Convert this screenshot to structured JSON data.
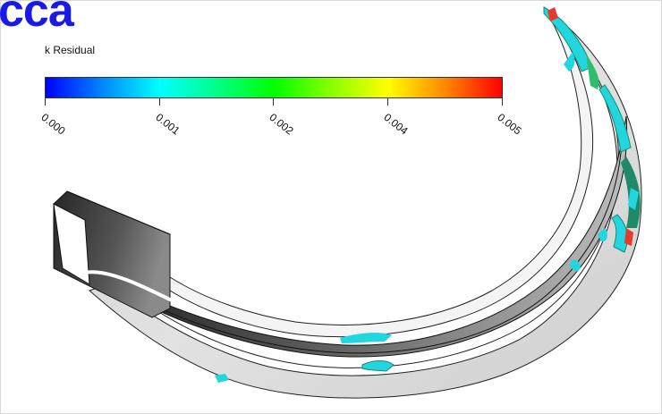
{
  "header": {
    "title": "cca"
  },
  "legend": {
    "title": "k Residual",
    "ticks": [
      "0.000",
      "0.001",
      "0.002",
      "0.004",
      "0.005"
    ],
    "colors": [
      "#0000ff",
      "#00ffff",
      "#00ff00",
      "#ffff00",
      "#ff0000"
    ]
  },
  "colors": {
    "heading": "#1a1ae6",
    "surface_light": "#d8d8d8",
    "surface_dark": "#3a3a3a",
    "residual_cyan": "#22d6e0",
    "residual_green": "#1e8a6a"
  }
}
